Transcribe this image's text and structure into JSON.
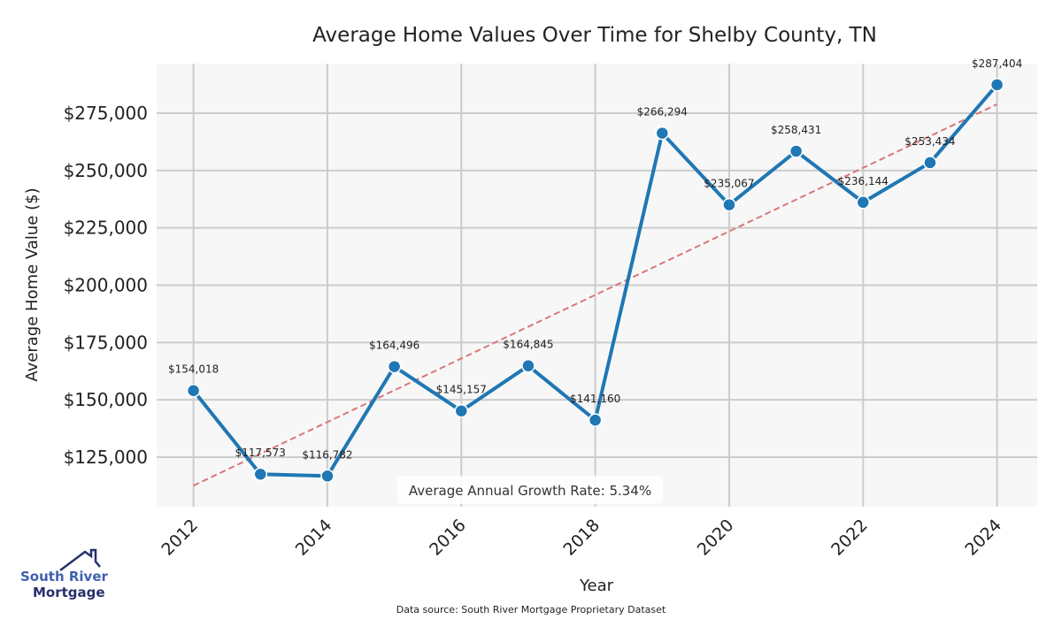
{
  "chart_data": {
    "type": "line",
    "title": "Average Home Values Over Time for Shelby County, TN",
    "xlabel": "Year",
    "ylabel": "Average Home Value ($)",
    "x": [
      2012,
      2013,
      2014,
      2015,
      2016,
      2017,
      2018,
      2019,
      2020,
      2021,
      2022,
      2023,
      2024
    ],
    "series": [
      {
        "name": "Average Home Value",
        "color": "#1f77b4",
        "values": [
          154018,
          117573,
          116782,
          164496,
          145157,
          164845,
          141160,
          266294,
          235067,
          258431,
          236144,
          253434,
          287404
        ]
      }
    ],
    "data_labels": [
      "$154,018",
      "$117,573",
      "$116,782",
      "$164,496",
      "$145,157",
      "$164,845",
      "$141,160",
      "$266,294",
      "$235,067",
      "$258,431",
      "$236,144",
      "$253,434",
      "$287,404"
    ],
    "trend": {
      "name": "Trend",
      "color": "#d9777a",
      "start": [
        2012,
        112600
      ],
      "end": [
        2024,
        278900
      ]
    },
    "xticks": [
      2012,
      2014,
      2016,
      2018,
      2020,
      2022,
      2024
    ],
    "xtick_labels": [
      "2012",
      "2014",
      "2016",
      "2018",
      "2020",
      "2022",
      "2024"
    ],
    "yticks": [
      125000,
      150000,
      175000,
      200000,
      225000,
      250000,
      275000
    ],
    "ytick_labels": [
      "$125,000",
      "$150,000",
      "$175,000",
      "$200,000",
      "$225,000",
      "$250,000",
      "$275,000"
    ],
    "xlim": [
      2011.45,
      2024.6
    ],
    "ylim": [
      103400,
      296600
    ],
    "grid": true,
    "annotation": "Average Annual Growth Rate: 5.34%",
    "source": "Data source: South River Mortgage Proprietary Dataset"
  },
  "logo": {
    "line1": "South River",
    "line2": "Mortgage"
  }
}
